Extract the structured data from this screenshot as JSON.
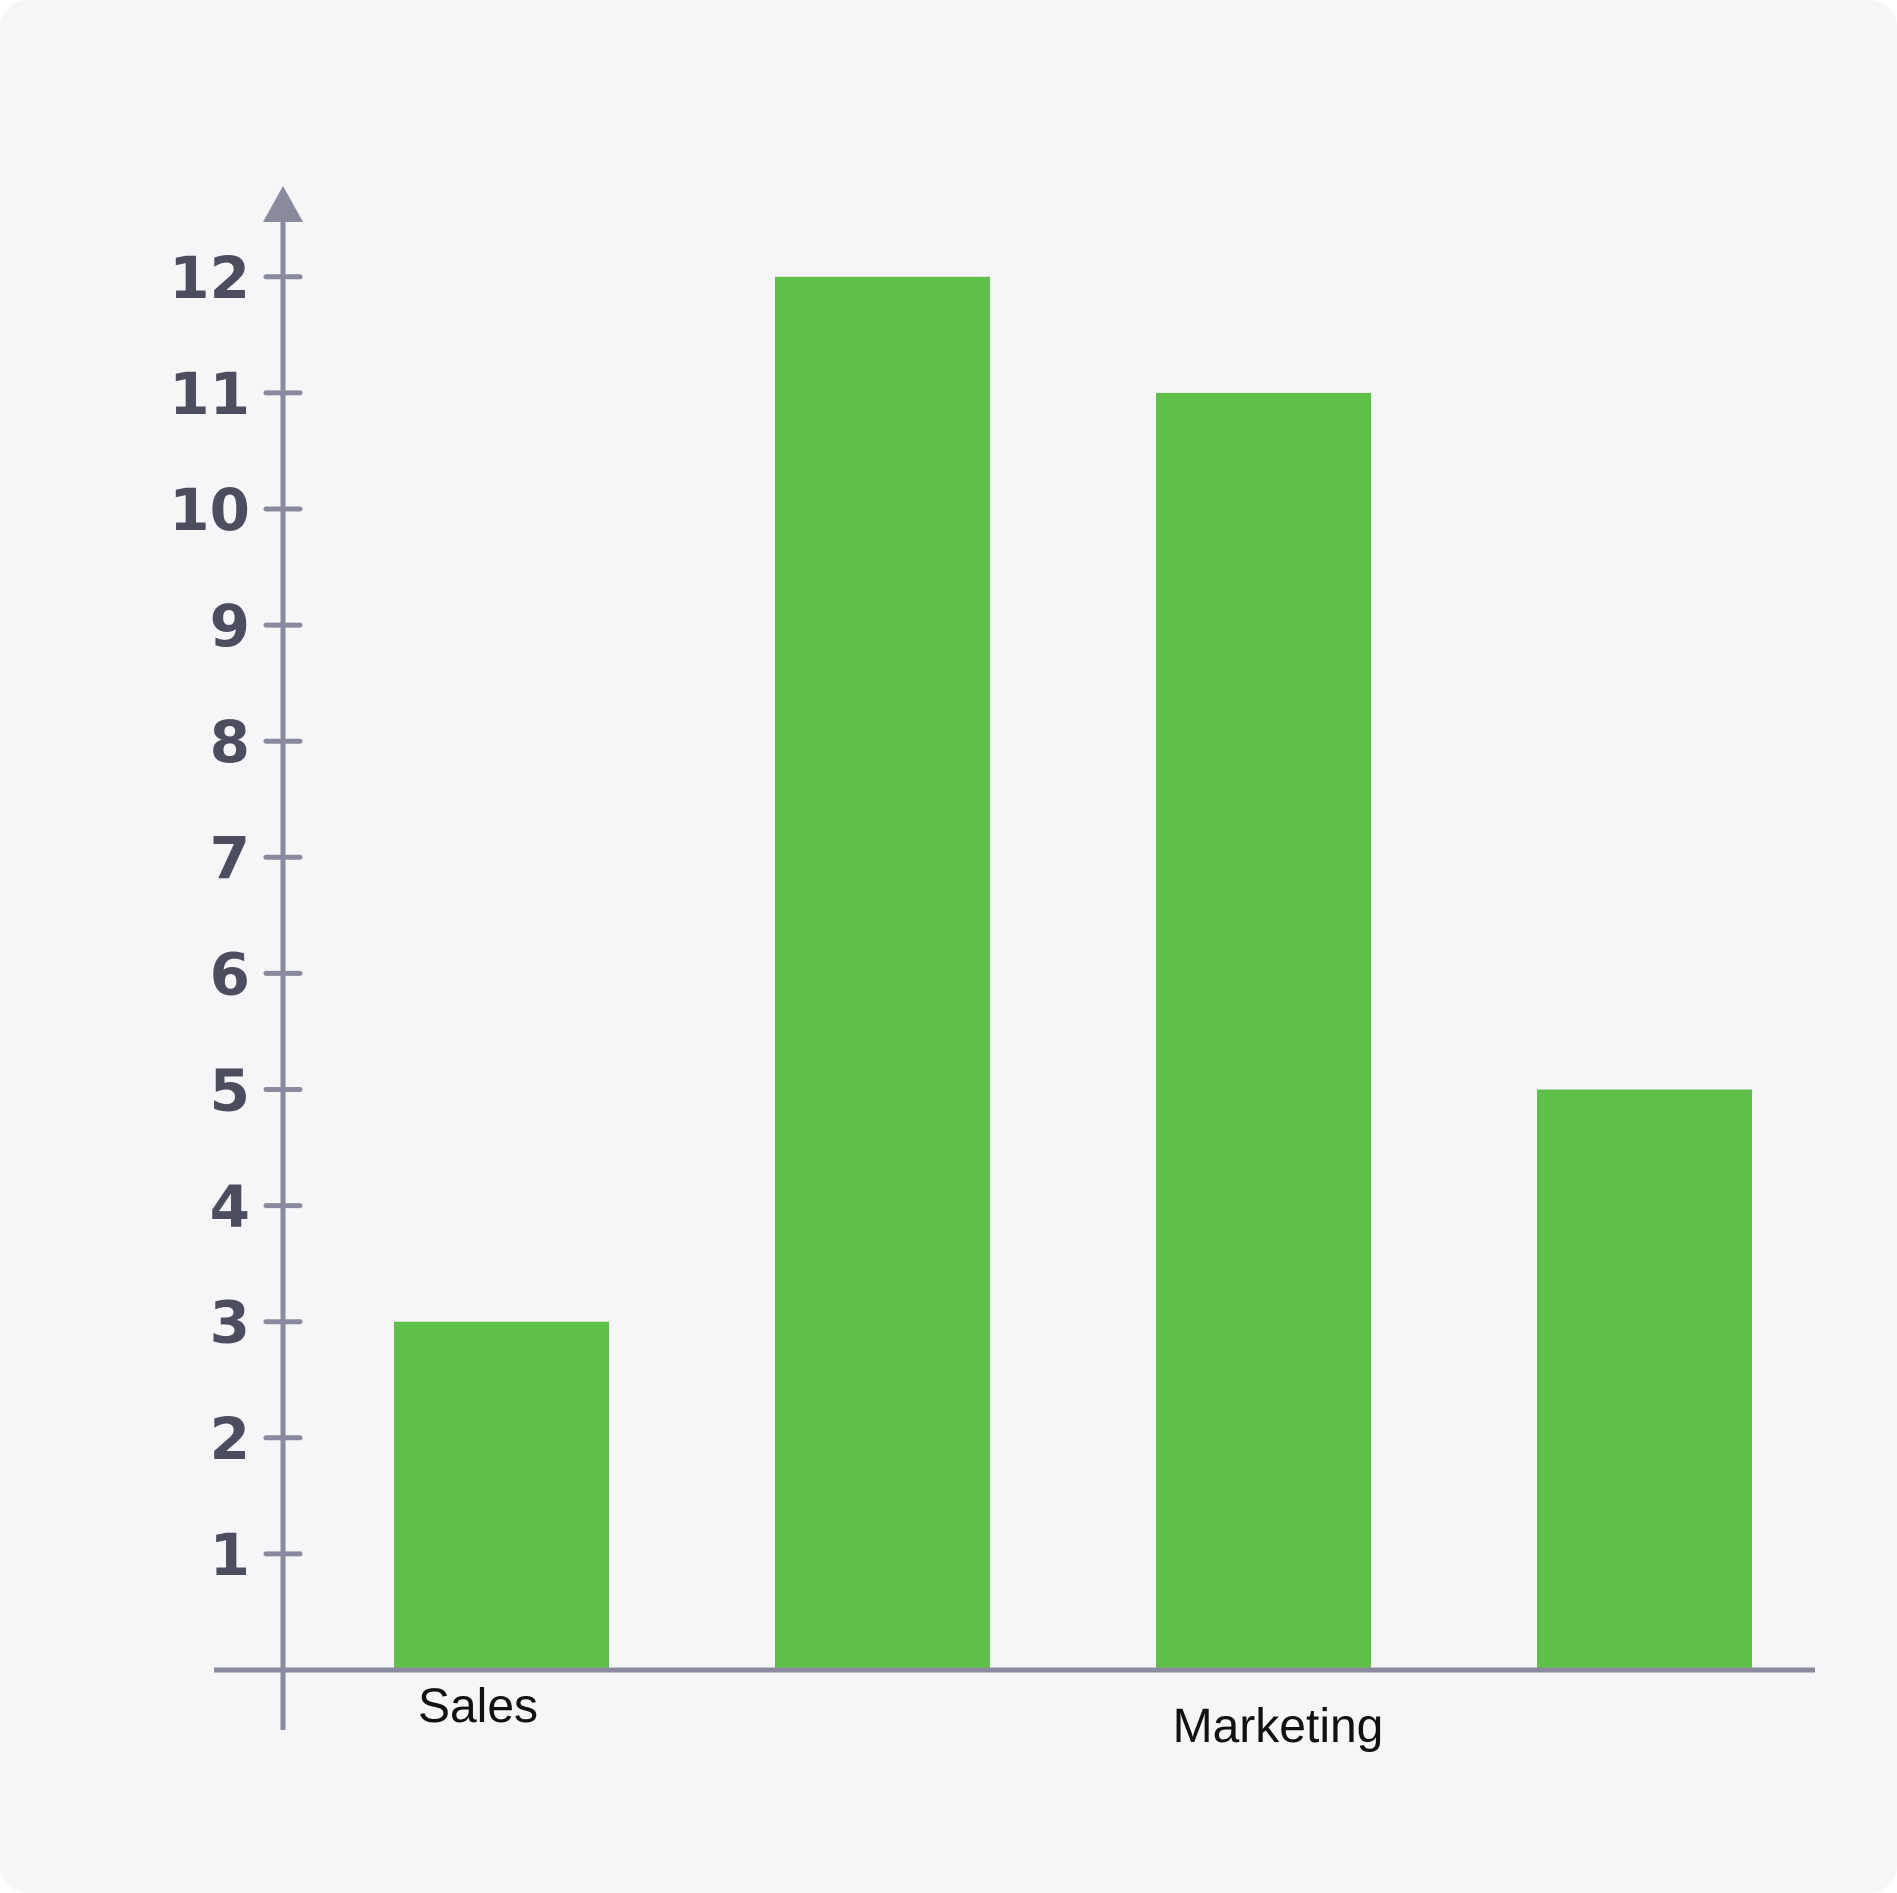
{
  "colors": {
    "background": "#f6f6f8",
    "bar": "#5ec048",
    "axis": "#8a8a9e",
    "tick_label": "#4d4d60",
    "category_label": "#111111"
  },
  "chart_data": {
    "type": "bar",
    "title": "",
    "xlabel": "",
    "ylabel": "",
    "categories": [
      "Sales",
      "",
      "Marketing",
      ""
    ],
    "values": [
      3,
      12,
      11,
      5
    ],
    "ylim": [
      0,
      12.5
    ],
    "yticks": [
      1,
      2,
      3,
      4,
      5,
      6,
      7,
      8,
      9,
      10,
      11,
      12
    ],
    "grid": false,
    "legend": "none"
  }
}
